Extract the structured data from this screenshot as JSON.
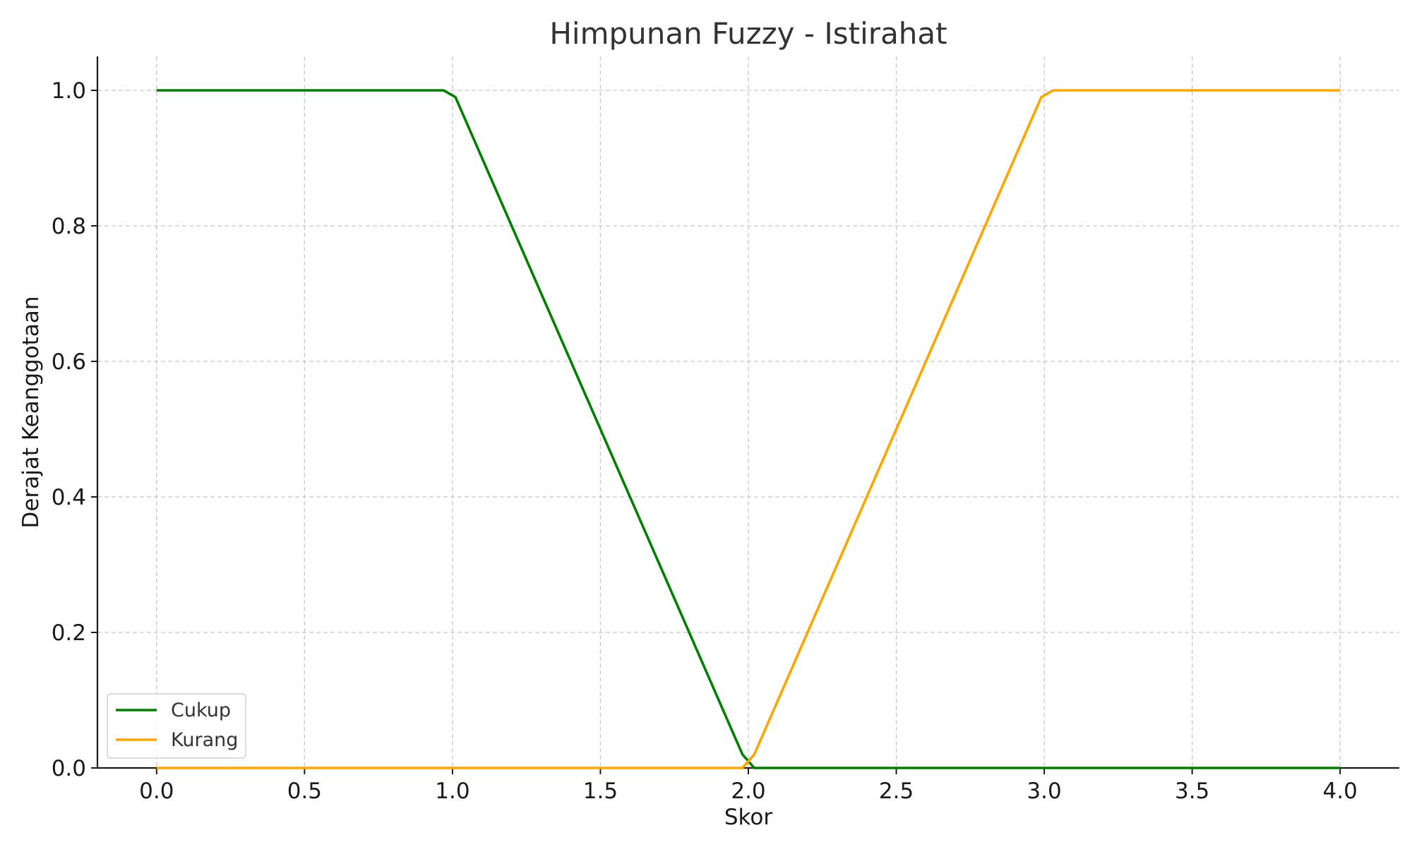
{
  "chart_data": {
    "type": "line",
    "title": "Himpunan Fuzzy - Istirahat",
    "xlabel": "Skor",
    "ylabel": "Derajat Keanggotaan",
    "xlim": [
      -0.2,
      4.2
    ],
    "ylim": [
      0.0,
      1.05
    ],
    "x_ticks": [
      0.0,
      0.5,
      1.0,
      1.5,
      2.0,
      2.5,
      3.0,
      3.5,
      4.0
    ],
    "x_tick_labels": [
      "0.0",
      "0.5",
      "1.0",
      "1.5",
      "2.0",
      "2.5",
      "3.0",
      "3.5",
      "4.0"
    ],
    "y_ticks": [
      0.0,
      0.2,
      0.4,
      0.6,
      0.8,
      1.0
    ],
    "y_tick_labels": [
      "0.0",
      "0.2",
      "0.4",
      "0.6",
      "0.8",
      "1.0"
    ],
    "grid": true,
    "legend_position": "lower-left",
    "series": [
      {
        "name": "Cukup",
        "color": "#008000",
        "x": [
          0.0,
          0.97,
          1.01,
          1.98,
          2.02,
          4.0
        ],
        "y": [
          1.0,
          1.0,
          0.99,
          0.02,
          0.0,
          0.0
        ]
      },
      {
        "name": "Kurang",
        "color": "#FFA500",
        "x": [
          0.0,
          1.98,
          2.02,
          2.99,
          3.03,
          4.0
        ],
        "y": [
          0.0,
          0.0,
          0.02,
          0.99,
          1.0,
          1.0
        ]
      }
    ]
  }
}
